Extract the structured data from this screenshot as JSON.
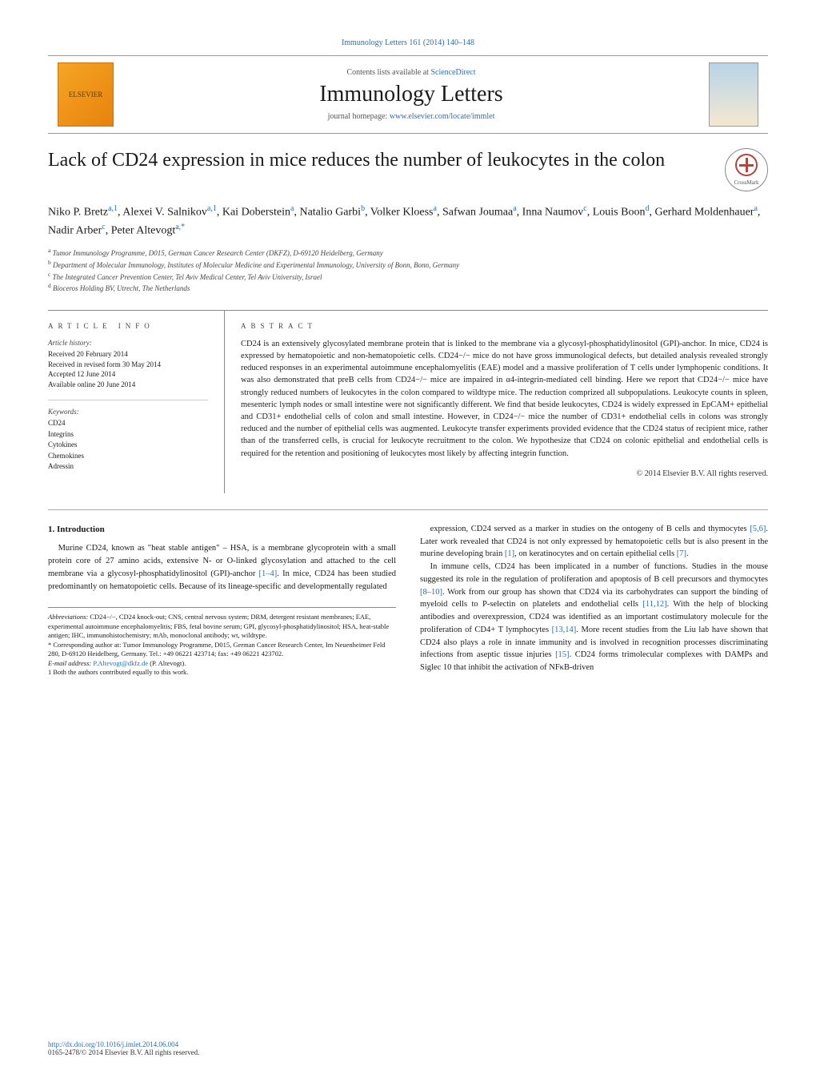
{
  "journal_ref": "Immunology Letters 161 (2014) 140–148",
  "masthead": {
    "contents_prefix": "Contents lists available at ",
    "contents_link": "ScienceDirect",
    "journal_name": "Immunology Letters",
    "homepage_prefix": "journal homepage: ",
    "homepage_link": "www.elsevier.com/locate/immlet",
    "elsevier_label": "ELSEVIER"
  },
  "crossmark_label": "CrossMark",
  "title": "Lack of CD24 expression in mice reduces the number of leukocytes in the colon",
  "authors_html": "Niko P. Bretz<sup>a,1</sup>, Alexei V. Salnikov<sup>a,1</sup>, Kai Doberstein<sup>a</sup>, Natalio Garbi<sup>b</sup>, Volker Kloess<sup>a</sup>, Safwan Joumaa<sup>a</sup>, Inna Naumov<sup>c</sup>, Louis Boon<sup>d</sup>, Gerhard Moldenhauer<sup>a</sup>, Nadir Arber<sup>c</sup>, Peter Altevogt<sup>a,*</sup>",
  "affiliations": [
    "a Tumor Immunology Programme, D015, German Cancer Research Center (DKFZ), D-69120 Heidelberg, Germany",
    "b Department of Molecular Immunology, Institutes of Molecular Medicine and Experimental Immunology, University of Bonn, Bonn, Germany",
    "c The Integrated Cancer Prevention Center, Tel Aviv Medical Center, Tel Aviv University, Israel",
    "d Bioceros Holding BV, Utrecht, The Netherlands"
  ],
  "article_info": {
    "heading": "ARTICLE INFO",
    "history_label": "Article history:",
    "history": [
      "Received 20 February 2014",
      "Received in revised form 30 May 2014",
      "Accepted 12 June 2014",
      "Available online 20 June 2014"
    ],
    "keywords_label": "Keywords:",
    "keywords": [
      "CD24",
      "Integrins",
      "Cytokines",
      "Chemokines",
      "Adressin"
    ]
  },
  "abstract": {
    "heading": "ABSTRACT",
    "text": "CD24 is an extensively glycosylated membrane protein that is linked to the membrane via a glycosyl-phosphatidylinositol (GPI)-anchor. In mice, CD24 is expressed by hematopoietic and non-hematopoietic cells. CD24−/− mice do not have gross immunological defects, but detailed analysis revealed strongly reduced responses in an experimental autoimmune encephalomyelitis (EAE) model and a massive proliferation of T cells under lymphopenic conditions. It was also demonstrated that preB cells from CD24−/− mice are impaired in α4-integrin-mediated cell binding. Here we report that CD24−/− mice have strongly reduced numbers of leukocytes in the colon compared to wildtype mice. The reduction comprized all subpopulations. Leukocyte counts in spleen, mesenteric lymph nodes or small intestine were not significantly different. We find that beside leukocytes, CD24 is widely expressed in EpCAM+ epithelial and CD31+ endothelial cells of colon and small intestine. However, in CD24−/− mice the number of CD31+ endothelial cells in colons was strongly reduced and the number of epithelial cells was augmented. Leukocyte transfer experiments provided evidence that the CD24 status of recipient mice, rather than of the transferred cells, is crucial for leukocyte recruitment to the colon. We hypothesize that CD24 on colonic epithelial and endothelial cells is required for the retention and positioning of leukocytes most likely by affecting integrin function.",
    "copyright": "© 2014 Elsevier B.V. All rights reserved."
  },
  "body": {
    "section_number": "1.",
    "section_title": "Introduction",
    "col1_p1": "Murine CD24, known as \"heat stable antigen\" – HSA, is a membrane glycoprotein with a small protein core of 27 amino acids, extensive N- or O-linked glycosylation and attached to the cell membrane via a glycosyl-phosphatidylinositol (GPI)-anchor [1–4]. In mice, CD24 has been studied predominantly on hematopoietic cells. Because of its lineage-specific and developmentally regulated",
    "col2_p1": "expression, CD24 served as a marker in studies on the ontogeny of B cells and thymocytes [5,6]. Later work revealed that CD24 is not only expressed by hematopoietic cells but is also present in the murine developing brain [1], on keratinocytes and on certain epithelial cells [7].",
    "col2_p2": "In immune cells, CD24 has been implicated in a number of functions. Studies in the mouse suggested its role in the regulation of proliferation and apoptosis of B cell precursors and thymocytes [8–10]. Work from our group has shown that CD24 via its carbohydrates can support the binding of myeloid cells to P-selectin on platelets and endothelial cells [11,12]. With the help of blocking antibodies and overexpression, CD24 was identified as an important costimulatory molecule for the proliferation of CD4+ T lymphocytes [13,14]. More recent studies from the Liu lab have shown that CD24 also plays a role in innate immunity and is involved in recognition processes discriminating infections from aseptic tissue injuries [15]. CD24 forms trimolecular complexes with DAMPs and Siglec 10 that inhibit the activation of NFκB-driven"
  },
  "abbrev": {
    "label": "Abbreviations:",
    "text": " CD24−/−, CD24 knock-out; CNS, central nervous system; DRM, detergent resistant membranes; EAE, experimental autoimmune encephalomyelitis; FBS, fetal bovine serum; GPI, glycosyl-phosphatidylinositol; HSA, heat-stable antigen; IHC, immunohistochemistry; mAb, monoclonal antibody; wt, wildtype.",
    "corr_label": "* Corresponding author at: ",
    "corr_text": "Tumor Immunology Programme, D015, German Cancer Research Center, Im Neuenheimer Feld 280, D-69120 Heidelberg, Germany. Tel.: +49 06221 423714; fax: +49 06221 423702.",
    "email_label": "E-mail address: ",
    "email": "P.Altevogt@dkfz.de",
    "email_who": " (P. Altevogt).",
    "note1": "1 Both the authors contributed equally to this work."
  },
  "footer": {
    "doi": "http://dx.doi.org/10.1016/j.imlet.2014.06.004",
    "copy": "0165-2478/© 2014 Elsevier B.V. All rights reserved."
  },
  "colors": {
    "link": "#2b6cb0",
    "text": "#1a1a1a",
    "rule": "#888888",
    "elsevier_bg": "#f5a623"
  }
}
